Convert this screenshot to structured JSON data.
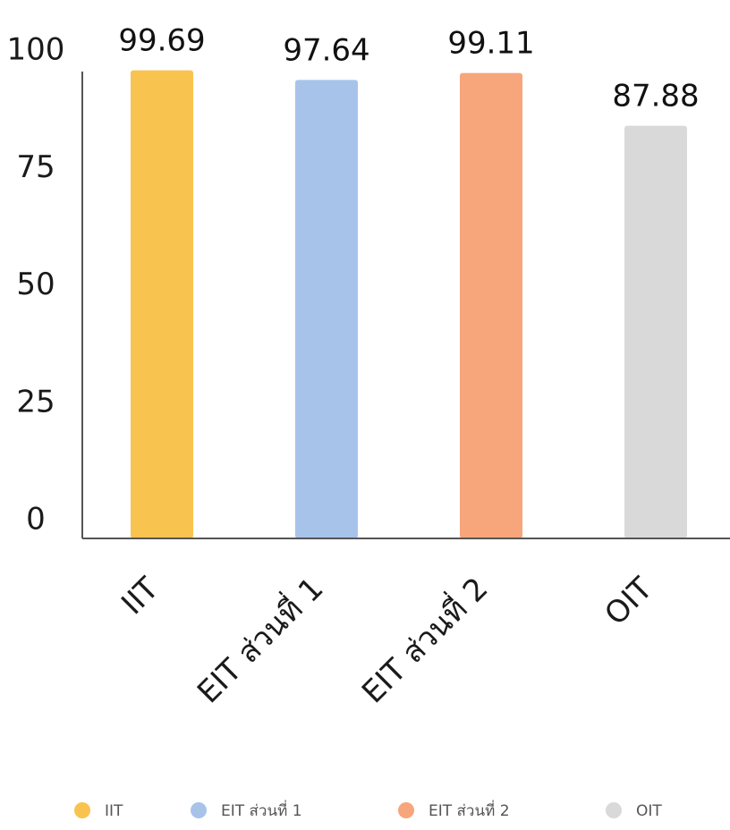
{
  "chart_data": {
    "type": "bar",
    "title": "",
    "xlabel": "",
    "ylabel": "",
    "categories": [
      "IIT",
      "EIT ส่วนที่ 1",
      "EIT ส่วนที่ 2",
      "OIT"
    ],
    "values": [
      99.69,
      97.64,
      99.11,
      87.88
    ],
    "data_labels": [
      "99.69",
      "97.64",
      "99.11",
      "87.88"
    ],
    "colors": [
      "#F9C34F",
      "#A7C3EA",
      "#F7A57A",
      "#D9D9D9"
    ],
    "ylim": [
      0,
      100
    ],
    "yticks": [
      0,
      25,
      50,
      75,
      100
    ],
    "grid": false,
    "legend": {
      "position": "bottom",
      "entries": [
        "IIT",
        "EIT ส่วนที่ 1",
        "EIT ส่วนที่ 2",
        "OIT"
      ]
    }
  }
}
